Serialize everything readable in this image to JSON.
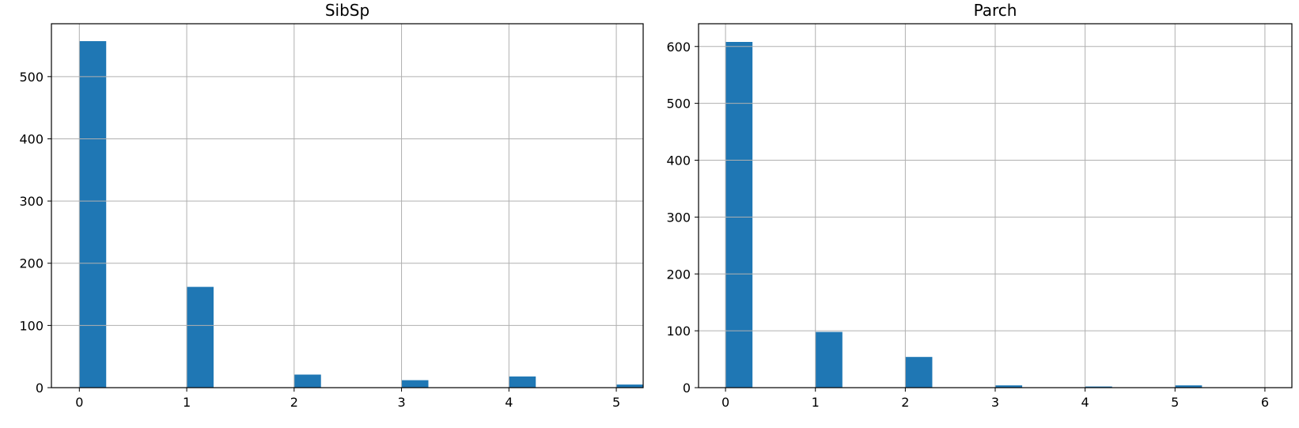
{
  "chart_data": [
    {
      "type": "bar",
      "title": "SibSp",
      "xlabel": "",
      "ylabel": "",
      "bars": [
        {
          "x": 0,
          "value": 557
        },
        {
          "x": 1,
          "value": 162
        },
        {
          "x": 2,
          "value": 21
        },
        {
          "x": 3,
          "value": 12
        },
        {
          "x": 4,
          "value": 18
        },
        {
          "x": 5,
          "value": 5
        }
      ],
      "bar_width": 0.25,
      "xlim": [
        -0.26,
        5.25
      ],
      "ylim": [
        0,
        585
      ],
      "xticks": [
        0,
        1,
        2,
        3,
        4,
        5
      ],
      "yticks": [
        0,
        100,
        200,
        300,
        400,
        500
      ],
      "grid": true,
      "color": "#1f77b4"
    },
    {
      "type": "bar",
      "title": "Parch",
      "xlabel": "",
      "ylabel": "",
      "bars": [
        {
          "x": 0,
          "value": 608
        },
        {
          "x": 1,
          "value": 98
        },
        {
          "x": 2,
          "value": 54
        },
        {
          "x": 3,
          "value": 4
        },
        {
          "x": 4,
          "value": 2
        },
        {
          "x": 5,
          "value": 4
        },
        {
          "x": 6,
          "value": 0
        }
      ],
      "bar_width": 0.3,
      "xlim": [
        -0.3,
        6.3
      ],
      "ylim": [
        0,
        640
      ],
      "xticks": [
        0,
        1,
        2,
        3,
        4,
        5,
        6
      ],
      "yticks": [
        0,
        100,
        200,
        300,
        400,
        500,
        600
      ],
      "grid": true,
      "color": "#1f77b4"
    }
  ]
}
